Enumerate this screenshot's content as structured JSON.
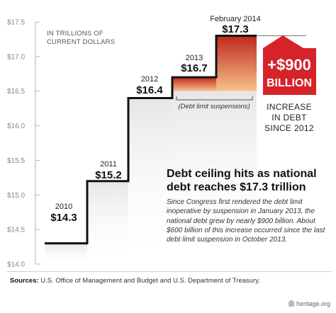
{
  "unit_label_lines": [
    "IN TRILLIONS OF",
    "CURRENT DOLLARS"
  ],
  "suspension_annotation": "(Debt limit suspensions)",
  "badge": {
    "line1": "+$900",
    "line2": "BILLION",
    "color": "#d6232a"
  },
  "increase_lines": [
    "INCREASE",
    "IN DEBT",
    "SINCE 2012"
  ],
  "headline_lines": [
    "Debt ceiling hits as national",
    "debt reaches $17.3 trillion"
  ],
  "body_text": "Since Congress first rendered the debt limit inoperative by suspension in January 2013, the national debt grew by nearly $900 billion. About $600 billion of this increase occurred since the last debt limit suspension in October 2013.",
  "sources_label": "Sources:",
  "sources_text": " U.S. Office of Management and Budget and U.S. Department of Treasury.",
  "logo_text": "heritage.org",
  "colors": {
    "step_line": "#111111",
    "gray_fill": "#e6e6e6",
    "orange_top": "#c0271c",
    "orange_bottom": "#f6c28c"
  },
  "chart_data": {
    "type": "area",
    "ylim": [
      14.0,
      17.5
    ],
    "yticks": [
      "$14.0",
      "$14.5",
      "$15.0",
      "$15.5",
      "$16.0",
      "$16.5",
      "$17.0",
      "$17.5"
    ],
    "ytick_values": [
      14.0,
      14.5,
      15.0,
      15.5,
      16.0,
      16.5,
      17.0,
      17.5
    ],
    "categories": [
      "2010",
      "2011",
      "2012",
      "2013",
      "February 2014"
    ],
    "values": [
      14.3,
      15.2,
      16.4,
      16.7,
      17.3
    ],
    "value_labels": [
      "$14.3",
      "$15.2",
      "$16.4",
      "$16.7",
      "$17.3"
    ],
    "highlighted_periods": [
      "2013",
      "February 2014"
    ]
  }
}
